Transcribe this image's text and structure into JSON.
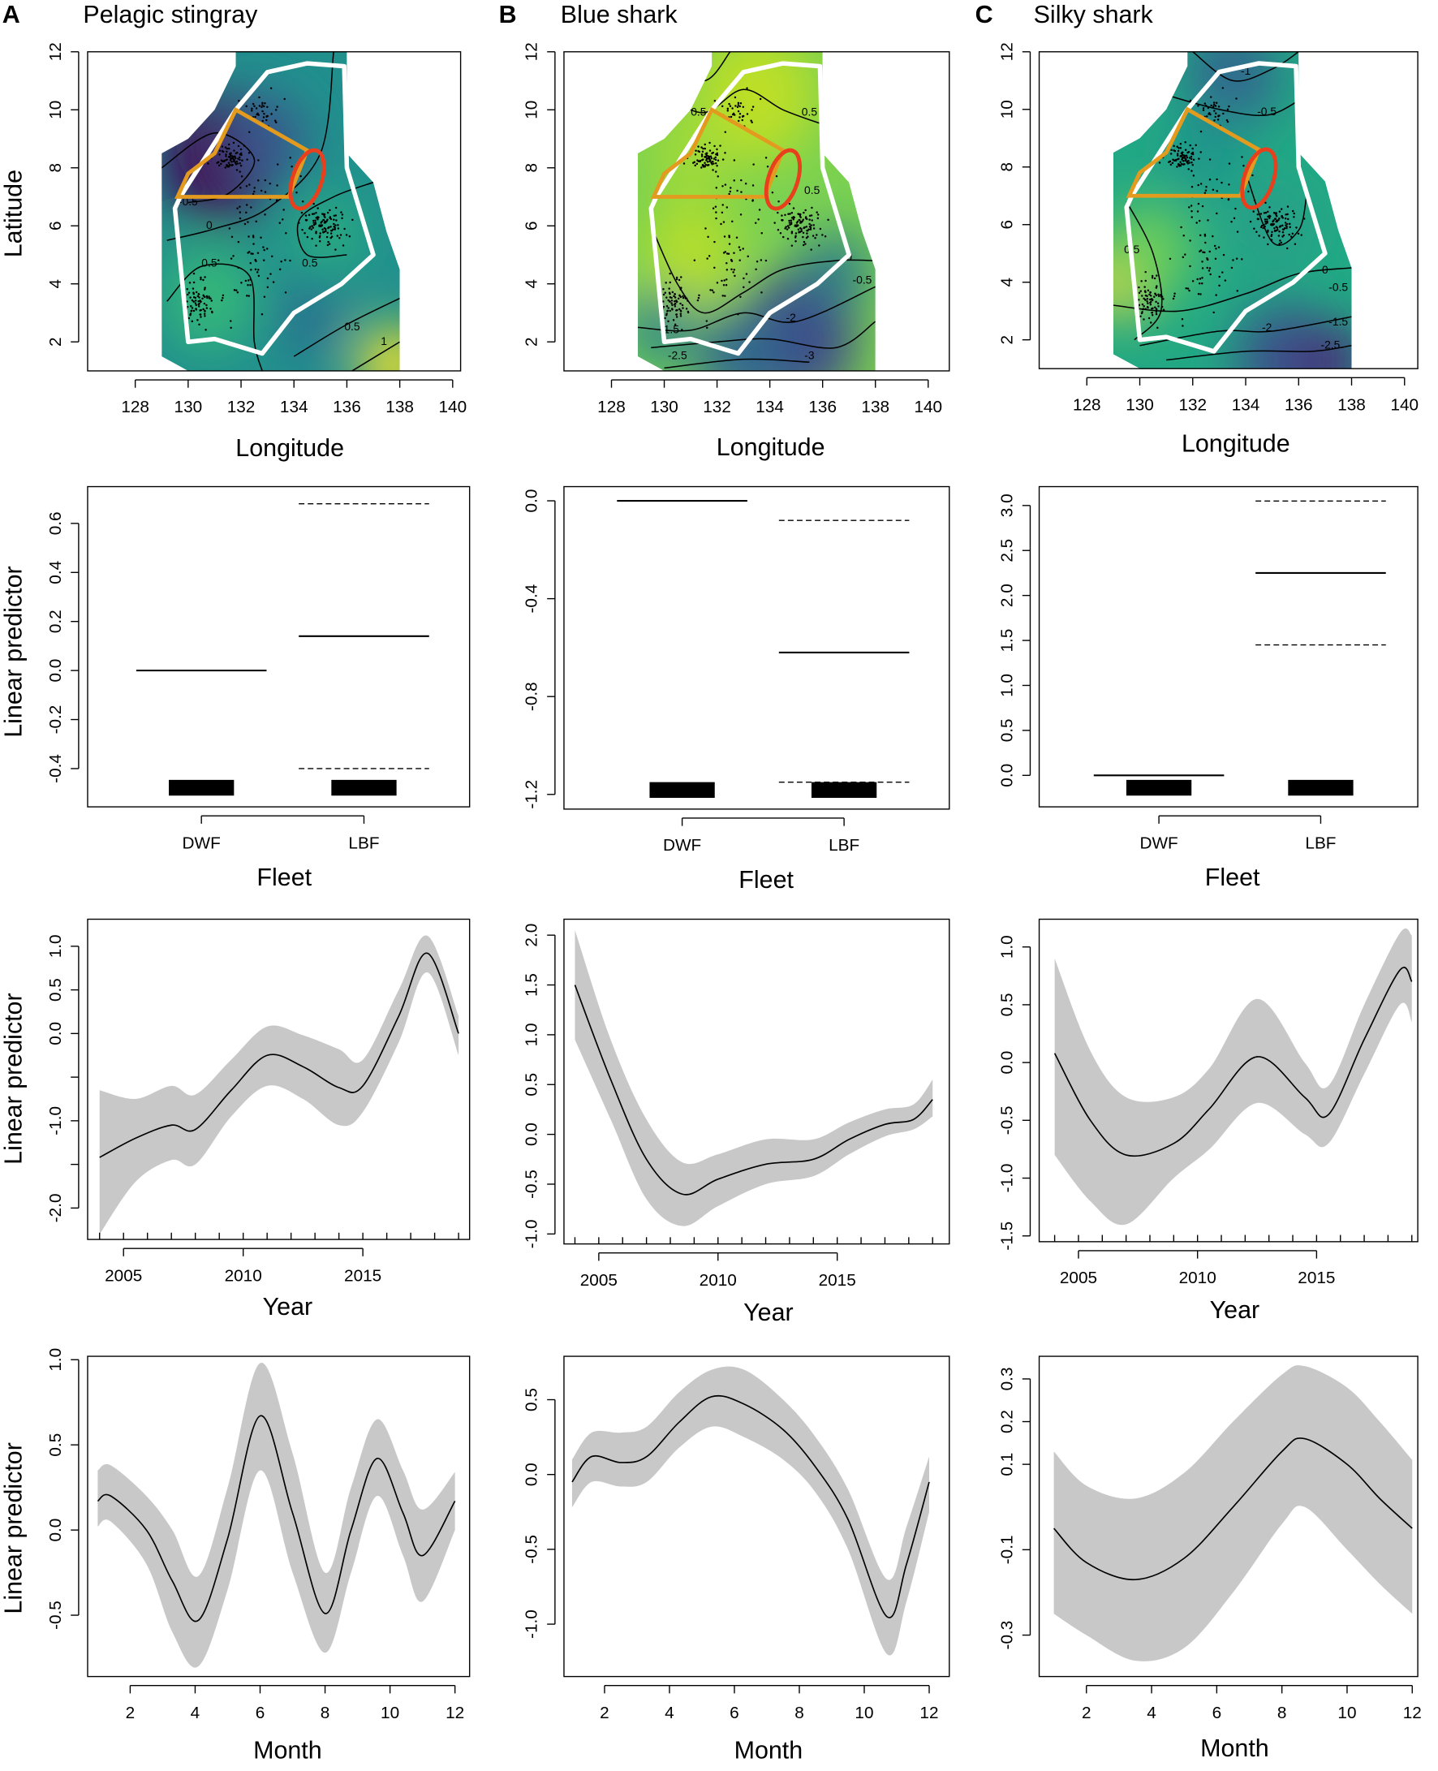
{
  "panels": [
    {
      "letter": "A",
      "title": "Pelagic stingray"
    },
    {
      "letter": "B",
      "title": "Blue shark"
    },
    {
      "letter": "C",
      "title": "Silky shark"
    }
  ],
  "labels": {
    "latitude": "Latitude",
    "longitude": "Longitude",
    "fleet": "Fleet",
    "year": "Year",
    "month": "Month",
    "linear_predictor": "Linear predictor"
  },
  "colors": {
    "ci_band": "#c8c8c8",
    "area_outline": "#ffffff",
    "orange_area": "#e39b1f",
    "red_area": "#e8401c"
  },
  "chart_data": [
    {
      "type": "heatmap",
      "row": "map",
      "species": "Pelagic stingray",
      "xlabel": "Longitude",
      "ylabel": "Latitude",
      "xlim": [
        126.2,
        140.3
      ],
      "ylim": [
        1,
        12
      ],
      "xticks": [
        128,
        130,
        132,
        134,
        136,
        138,
        140
      ],
      "yticks": [
        2,
        4,
        6,
        8,
        10,
        12
      ],
      "contours": [
        {
          "label": "-0.5",
          "lon": 130.0,
          "lat": 6.7
        },
        {
          "label": "0",
          "lon": 130.8,
          "lat": 5.9
        },
        {
          "label": "0.5",
          "lon": 130.8,
          "lat": 4.6
        },
        {
          "label": "0.5",
          "lon": 134.6,
          "lat": 4.6
        },
        {
          "label": "0.5",
          "lon": 136.2,
          "lat": 2.4
        },
        {
          "label": "1",
          "lon": 137.4,
          "lat": 1.9
        }
      ]
    },
    {
      "type": "heatmap",
      "row": "map",
      "species": "Blue shark",
      "xlabel": "Longitude",
      "ylabel": "",
      "xlim": [
        126.2,
        140.8
      ],
      "ylim": [
        1,
        12
      ],
      "xticks": [
        128,
        130,
        132,
        134,
        136,
        138,
        140
      ],
      "yticks": [
        2,
        4,
        6,
        8,
        10,
        12
      ],
      "contours": [
        {
          "label": "1",
          "lon": 131.5,
          "lat": 11.2
        },
        {
          "label": "0.5",
          "lon": 131.3,
          "lat": 9.8
        },
        {
          "label": "0.5",
          "lon": 135.5,
          "lat": 9.8
        },
        {
          "label": "0.5",
          "lon": 135.6,
          "lat": 7.1
        },
        {
          "label": "0",
          "lon": 137.0,
          "lat": 4.8
        },
        {
          "label": "-0.5",
          "lon": 137.5,
          "lat": 4.0
        },
        {
          "label": "-1.5",
          "lon": 130.2,
          "lat": 2.3
        },
        {
          "label": "-2",
          "lon": 134.8,
          "lat": 2.7
        },
        {
          "label": "-2.5",
          "lon": 130.5,
          "lat": 1.4
        },
        {
          "label": "-3",
          "lon": 135.5,
          "lat": 1.4
        }
      ]
    },
    {
      "type": "heatmap",
      "row": "map",
      "species": "Silky shark",
      "xlabel": "Longitude",
      "ylabel": "",
      "xlim": [
        126.2,
        140.5
      ],
      "ylim": [
        1,
        12
      ],
      "xticks": [
        128,
        130,
        132,
        134,
        136,
        138,
        140
      ],
      "yticks": [
        2,
        4,
        6,
        8,
        10,
        12
      ],
      "contours": [
        {
          "label": "-1",
          "lon": 134.0,
          "lat": 11.2
        },
        {
          "label": "-0.5",
          "lon": 134.8,
          "lat": 9.8
        },
        {
          "label": "0",
          "lon": 136.0,
          "lat": 8.5
        },
        {
          "label": "0.5",
          "lon": 129.7,
          "lat": 5.0
        },
        {
          "label": "0",
          "lon": 137.0,
          "lat": 4.3
        },
        {
          "label": "-0.5",
          "lon": 137.5,
          "lat": 3.7
        },
        {
          "label": "-1.5",
          "lon": 137.5,
          "lat": 2.5
        },
        {
          "label": "-2",
          "lon": 134.8,
          "lat": 2.3
        },
        {
          "label": "-2.5",
          "lon": 137.2,
          "lat": 1.7
        }
      ]
    },
    {
      "type": "bar",
      "row": "fleet",
      "species": "Pelagic stingray",
      "xlabel": "Fleet",
      "ylabel": "Linear predictor",
      "categories": [
        "DWF",
        "LBF"
      ],
      "values": [
        0.0,
        0.14
      ],
      "lower": [
        null,
        -0.4
      ],
      "upper": [
        null,
        0.68
      ],
      "xlim": [
        0.3,
        2.65
      ],
      "ylim": [
        -0.556,
        0.75
      ],
      "yticks": [
        -0.4,
        -0.2,
        0.0,
        0.2,
        0.4,
        0.6
      ],
      "ytick_labels": [
        "-0.4",
        "-0.2",
        "0.0",
        "0.2",
        "0.4",
        "0.6"
      ]
    },
    {
      "type": "bar",
      "row": "fleet",
      "species": "Blue shark",
      "xlabel": "Fleet",
      "ylabel": "",
      "categories": [
        "DWF",
        "LBF"
      ],
      "values": [
        0.0,
        -0.62
      ],
      "lower": [
        null,
        -1.15
      ],
      "upper": [
        null,
        -0.08
      ],
      "xlim": [
        0.27,
        2.65
      ],
      "ylim": [
        -1.26,
        0.058
      ],
      "yticks": [
        -1.2,
        -0.8,
        -0.4,
        0.0
      ],
      "ytick_labels": [
        "-1.2",
        "-0.8",
        "-0.4",
        "0.0"
      ]
    },
    {
      "type": "bar",
      "row": "fleet",
      "species": "Silky shark",
      "xlabel": "Fleet",
      "ylabel": "",
      "categories": [
        "DWF",
        "LBF"
      ],
      "values": [
        0.0,
        2.25
      ],
      "lower": [
        null,
        1.45
      ],
      "upper": [
        null,
        3.05
      ],
      "xlim": [
        0.26,
        2.6
      ],
      "ylim": [
        -0.35,
        3.21
      ],
      "yticks": [
        0,
        0.5,
        1,
        1.5,
        2,
        2.5,
        3
      ],
      "ytick_labels": [
        "0.0",
        "0.5",
        "1.0",
        "1.5",
        "2.0",
        "2.5",
        "3.0"
      ]
    },
    {
      "type": "line",
      "row": "year",
      "species": "Pelagic stingray",
      "xlabel": "Year",
      "ylabel": "Linear predictor",
      "x": [
        2004,
        2005.5,
        2007,
        2008,
        2009.5,
        2011,
        2012.5,
        2014,
        2015,
        2016.5,
        2017.7,
        2019
      ],
      "y": [
        -1.42,
        -1.2,
        -1.05,
        -1.1,
        -0.65,
        -0.25,
        -0.38,
        -0.62,
        -0.6,
        0.2,
        0.92,
        0.0
      ],
      "lower": [
        -2.3,
        -1.7,
        -1.45,
        -1.5,
        -0.95,
        -0.6,
        -0.75,
        -1.05,
        -0.9,
        -0.1,
        0.7,
        -0.25
      ],
      "upper": [
        -0.65,
        -0.75,
        -0.6,
        -0.7,
        -0.3,
        0.08,
        -0.02,
        -0.18,
        -0.3,
        0.5,
        1.12,
        0.2
      ],
      "xlim": [
        2003.5,
        2019.46
      ],
      "ylim": [
        -2.36,
        1.31
      ],
      "xticks": [
        2005,
        2010,
        2015
      ],
      "yticks": [
        -2,
        -1.5,
        -1,
        -0.5,
        0,
        0.5,
        1
      ],
      "ytick_labels": [
        "-2.0",
        "",
        "-1.0",
        "",
        "0.0",
        "0.5",
        "1.0"
      ]
    },
    {
      "type": "line",
      "row": "year",
      "species": "Blue shark",
      "xlabel": "Year",
      "ylabel": "",
      "x": [
        2004,
        2005.5,
        2007,
        2008.5,
        2010,
        2012,
        2014,
        2015.5,
        2017,
        2018.2,
        2019
      ],
      "y": [
        1.5,
        0.55,
        -0.25,
        -0.6,
        -0.45,
        -0.3,
        -0.25,
        -0.05,
        0.1,
        0.15,
        0.35
      ],
      "lower": [
        0.95,
        0.15,
        -0.65,
        -0.92,
        -0.72,
        -0.5,
        -0.42,
        -0.2,
        -0.02,
        0.05,
        0.18
      ],
      "upper": [
        2.05,
        0.95,
        0.15,
        -0.28,
        -0.2,
        -0.05,
        -0.05,
        0.12,
        0.25,
        0.3,
        0.55
      ],
      "xlim": [
        2003.54,
        2019.7
      ],
      "ylim": [
        -1.1,
        2.16
      ],
      "xticks": [
        2005,
        2010,
        2015
      ],
      "yticks": [
        -1,
        -0.5,
        0,
        0.5,
        1,
        1.5,
        2
      ],
      "ytick_labels": [
        "-1.0",
        "-0.5",
        "0.0",
        "0.5",
        "1.0",
        "1.5",
        "2.0"
      ]
    },
    {
      "type": "line",
      "row": "year",
      "species": "Silky shark",
      "xlabel": "Year",
      "ylabel": "",
      "x": [
        2004,
        2005.5,
        2007,
        2009,
        2010.5,
        2012.5,
        2014.5,
        2015.5,
        2017,
        2018.5,
        2019
      ],
      "y": [
        0.08,
        -0.5,
        -0.8,
        -0.7,
        -0.4,
        0.05,
        -0.3,
        -0.45,
        0.2,
        0.8,
        0.7
      ],
      "lower": [
        -0.8,
        -1.2,
        -1.4,
        -1.0,
        -0.75,
        -0.35,
        -0.62,
        -0.7,
        -0.1,
        0.5,
        0.35
      ],
      "upper": [
        0.9,
        0.1,
        -0.3,
        -0.3,
        -0.05,
        0.55,
        0.0,
        -0.2,
        0.5,
        1.12,
        1.1
      ],
      "xlim": [
        2003.35,
        2019.25
      ],
      "ylim": [
        -1.55,
        1.24
      ],
      "xticks": [
        2005,
        2010,
        2015
      ],
      "yticks": [
        -1.5,
        -1,
        -0.5,
        0,
        0.5,
        1
      ],
      "ytick_labels": [
        "-1.5",
        "-1.0",
        "-0.5",
        "0.0",
        "0.5",
        "1.0"
      ]
    },
    {
      "type": "line",
      "row": "month",
      "species": "Pelagic stingray",
      "xlabel": "Month",
      "ylabel": "Linear predictor",
      "x": [
        1,
        1.4,
        2.5,
        3.3,
        4.1,
        5,
        6,
        7,
        8,
        8.8,
        9.6,
        10.4,
        11,
        12
      ],
      "y": [
        0.17,
        0.2,
        0.0,
        -0.3,
        -0.53,
        -0.05,
        0.67,
        0.1,
        -0.49,
        0.0,
        0.42,
        0.1,
        -0.15,
        0.17
      ],
      "lower": [
        0.02,
        0.05,
        -0.2,
        -0.6,
        -0.8,
        -0.35,
        0.35,
        -0.25,
        -0.72,
        -0.25,
        0.2,
        -0.15,
        -0.42,
        0.0
      ],
      "upper": [
        0.35,
        0.38,
        0.2,
        0.0,
        -0.27,
        0.25,
        0.98,
        0.45,
        -0.25,
        0.25,
        0.65,
        0.35,
        0.12,
        0.34
      ],
      "xlim": [
        0.69,
        12.45
      ],
      "ylim": [
        -0.86,
        1.02
      ],
      "xticks": [
        2,
        4,
        6,
        8,
        10,
        12
      ],
      "yticks": [
        -0.5,
        0,
        0.5,
        1
      ],
      "ytick_labels": [
        "-0.5",
        "0.0",
        "0.5",
        "1.0"
      ]
    },
    {
      "type": "line",
      "row": "month",
      "species": "Blue shark",
      "xlabel": "Month",
      "ylabel": "",
      "x": [
        1,
        1.6,
        2.5,
        3.3,
        4.3,
        5.3,
        6.3,
        7.5,
        8.5,
        9.5,
        10.7,
        11.3,
        12
      ],
      "y": [
        -0.05,
        0.12,
        0.08,
        0.12,
        0.35,
        0.52,
        0.47,
        0.3,
        0.05,
        -0.3,
        -0.95,
        -0.6,
        -0.05
      ],
      "lower": [
        -0.22,
        -0.05,
        -0.08,
        -0.05,
        0.18,
        0.32,
        0.25,
        0.1,
        -0.12,
        -0.5,
        -1.2,
        -0.85,
        -0.25
      ],
      "upper": [
        0.1,
        0.28,
        0.28,
        0.32,
        0.55,
        0.7,
        0.7,
        0.5,
        0.25,
        -0.1,
        -0.7,
        -0.35,
        0.12
      ],
      "xlim": [
        0.75,
        12.62
      ],
      "ylim": [
        -1.35,
        0.79
      ],
      "xticks": [
        2,
        4,
        6,
        8,
        10,
        12
      ],
      "yticks": [
        -1,
        -0.5,
        0,
        0.5
      ],
      "ytick_labels": [
        "-1.0",
        "-0.5",
        "0.0",
        "0.5"
      ]
    },
    {
      "type": "line",
      "row": "month",
      "species": "Silky shark",
      "xlabel": "Month",
      "ylabel": "",
      "x": [
        1,
        2,
        3.5,
        5,
        6.5,
        8,
        8.7,
        10,
        11,
        12
      ],
      "y": [
        -0.05,
        -0.13,
        -0.17,
        -0.12,
        0.0,
        0.13,
        0.16,
        0.1,
        0.02,
        -0.05
      ],
      "lower": [
        -0.25,
        -0.3,
        -0.36,
        -0.33,
        -0.2,
        -0.04,
        0.0,
        -0.1,
        -0.18,
        -0.25
      ],
      "upper": [
        0.13,
        0.05,
        0.02,
        0.08,
        0.2,
        0.31,
        0.33,
        0.28,
        0.2,
        0.11
      ],
      "xlim": [
        0.55,
        12.17
      ],
      "ylim": [
        -0.397,
        0.353
      ],
      "xticks": [
        2,
        4,
        6,
        8,
        10,
        12
      ],
      "yticks": [
        -0.3,
        -0.1,
        0.1,
        0.2,
        0.3
      ],
      "ytick_labels": [
        "-0.3",
        "-0.1",
        "0.1",
        "0.2",
        "0.3"
      ]
    }
  ]
}
